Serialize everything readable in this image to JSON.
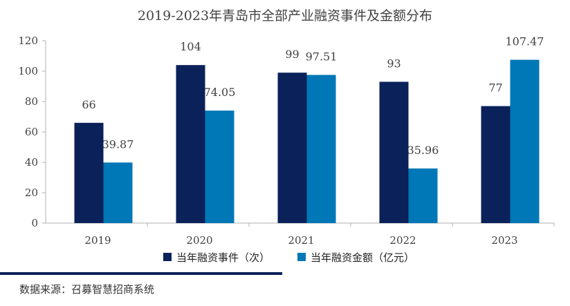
{
  "chart_data": {
    "type": "bar",
    "title": "2019-2023年青岛市全部产业融资事件及金额分布",
    "categories": [
      "2019",
      "2020",
      "2021",
      "2022",
      "2023"
    ],
    "series": [
      {
        "name": "当年融资事件（次）",
        "values": [
          66,
          104,
          99,
          93,
          77
        ],
        "labels": [
          "66",
          "104",
          "99",
          "93",
          "77"
        ],
        "color": "#0b2159"
      },
      {
        "name": "当年融资金额（亿元）",
        "values": [
          39.87,
          74.05,
          97.51,
          35.96,
          107.47
        ],
        "labels": [
          "39.87",
          "74.05",
          "97.51",
          "35.96",
          "107.47"
        ],
        "color": "#0077b6"
      }
    ],
    "ylim": [
      0,
      120
    ],
    "yticks": [
      "0",
      "20",
      "40",
      "60",
      "80",
      "100",
      "120"
    ],
    "xlabel": "",
    "ylabel": "",
    "grid": false,
    "legend_position": "bottom"
  },
  "footer": {
    "source": "数据来源：召募智慧招商系统",
    "bar_color": "#0b2159"
  }
}
